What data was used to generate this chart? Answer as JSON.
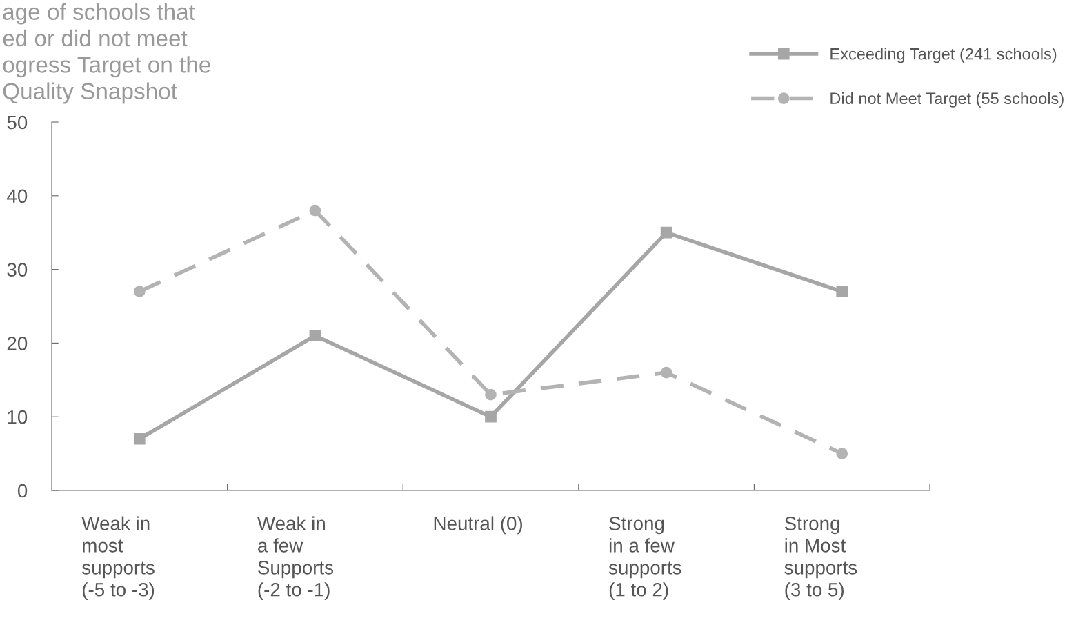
{
  "chart_data": {
    "type": "line",
    "title": "age of schools that\ned or did not meet\nogress Target on the\nQuality Snapshot",
    "categories": [
      "Weak in\nmost\nsupports\n(-5 to -3)",
      "Weak in\na few\nSupports\n(-2 to -1)",
      "Neutral (0)",
      "Strong\nin a few\nsupports\n(1 to 2)",
      "Strong\nin Most\nsupports\n(3 to 5)"
    ],
    "series": [
      {
        "name": "Exceeding Target (241 schools)",
        "color": "#a6a6a6",
        "values": [
          7,
          21,
          10,
          35,
          27
        ],
        "marker": "square",
        "line_style": "solid"
      },
      {
        "name": "Did not Meet Target (55 schools)",
        "color": "#b3b3b3",
        "values": [
          27,
          38,
          13,
          16,
          5
        ],
        "marker": "circle",
        "line_style": "dashed"
      }
    ],
    "ylim": [
      0,
      50
    ],
    "yticks": [
      0,
      10,
      20,
      30,
      40,
      50
    ],
    "grid": false,
    "legend": "top right"
  }
}
